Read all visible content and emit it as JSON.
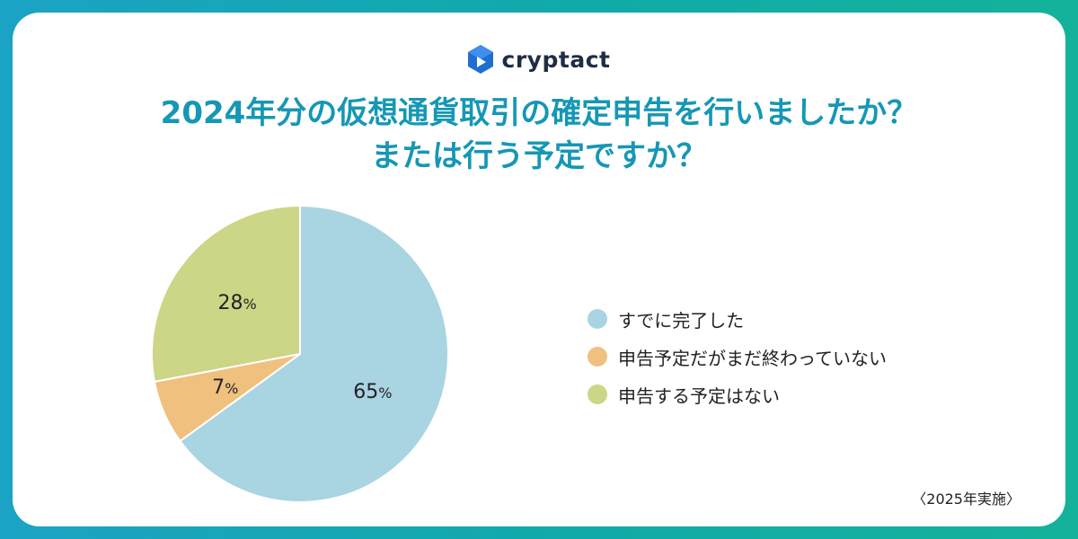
{
  "brand": {
    "name": "cryptact"
  },
  "title": {
    "line1": "2024年分の仮想通貨取引の確定申告を行いましたか？",
    "line2": "または行う予定ですか？"
  },
  "chart_data": {
    "type": "pie",
    "categories": [
      "すでに完了した",
      "申告予定だがまだ終わっていない",
      "申告する予定はない"
    ],
    "values": [
      65,
      7,
      28
    ],
    "unit": "%",
    "colors": [
      "#a9d4e2",
      "#f0c07f",
      "#cdd586"
    ],
    "data_labels": [
      "65",
      "7",
      "28"
    ],
    "legend_position": "right"
  },
  "note": "〈2025年実施〉",
  "colors": {
    "title": "#1597b5",
    "frame": "#14a9b4",
    "logo": "#1f6fd1"
  }
}
